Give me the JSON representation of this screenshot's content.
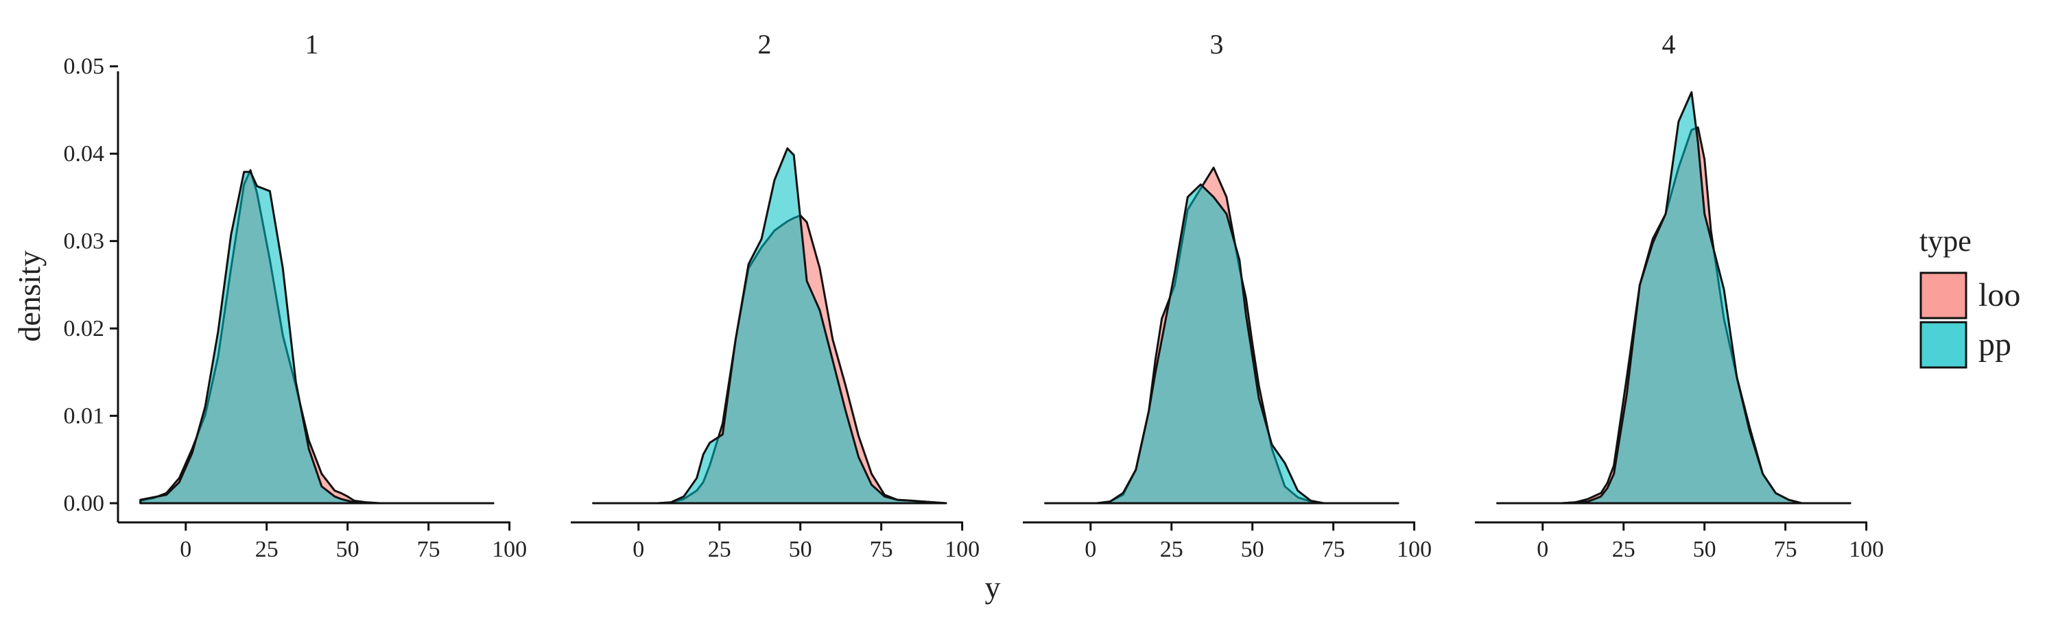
{
  "chart_data": {
    "type": "area",
    "title": "",
    "xlabel": "y",
    "ylabel": "density",
    "xlim": [
      -15,
      95
    ],
    "ylim": [
      0,
      0.051
    ],
    "xticks": [
      0,
      25,
      50,
      75,
      100
    ],
    "xtick_labels": [
      "0",
      "25",
      "50",
      "75",
      "100"
    ],
    "yticks": [
      0,
      0.01,
      0.02,
      0.03,
      0.04,
      0.05
    ],
    "ytick_labels": [
      "0.00",
      "0.01",
      "0.02",
      "0.03",
      "0.04",
      "0.05"
    ],
    "grid": false,
    "legend": {
      "title": "type",
      "position": "right",
      "entries": [
        {
          "name": "loo",
          "color": "#F8766D"
        },
        {
          "name": "pp",
          "color": "#00BFC4"
        }
      ]
    },
    "x": [
      -14,
      -10,
      -6,
      -2,
      2,
      6,
      10,
      14,
      18,
      20,
      22,
      26,
      30,
      34,
      38,
      42,
      46,
      48,
      50,
      52,
      56,
      60,
      64,
      68,
      72,
      76,
      80,
      84,
      88,
      95
    ],
    "panels": [
      {
        "label": "1",
        "series": [
          {
            "name": "loo",
            "values": [
              0.0003,
              0.0006,
              0.0012,
              0.003,
              0.0065,
              0.0105,
              0.0175,
              0.028,
              0.038,
              0.0397,
              0.037,
              0.029,
              0.02,
              0.014,
              0.0075,
              0.0035,
              0.0015,
              0.0012,
              0.0008,
              0.0003,
              0.0001,
              0.0,
              0.0,
              0.0,
              0.0,
              0.0,
              0.0,
              0.0,
              0.0,
              0.0
            ]
          },
          {
            "name": "pp",
            "values": [
              0.0004,
              0.0007,
              0.001,
              0.0025,
              0.006,
              0.0115,
              0.0205,
              0.032,
              0.0395,
              0.0395,
              0.0378,
              0.0372,
              0.028,
              0.0145,
              0.0065,
              0.002,
              0.0008,
              0.0005,
              0.0003,
              0.0001,
              0.0,
              0.0,
              0.0,
              0.0,
              0.0,
              0.0,
              0.0,
              0.0,
              0.0,
              0.0
            ]
          }
        ]
      },
      {
        "label": "2",
        "series": [
          {
            "name": "loo",
            "values": [
              0.0,
              0.0,
              0.0,
              0.0,
              0.0,
              0.0,
              0.0001,
              0.0005,
              0.0015,
              0.0025,
              0.0045,
              0.0095,
              0.0195,
              0.028,
              0.0305,
              0.0325,
              0.0336,
              0.034,
              0.0343,
              0.0335,
              0.028,
              0.0195,
              0.014,
              0.008,
              0.0035,
              0.001,
              0.0004,
              0.0003,
              0.0002,
              0.0
            ]
          },
          {
            "name": "pp",
            "values": [
              0.0,
              0.0,
              0.0,
              0.0,
              0.0,
              0.0,
              0.0001,
              0.0008,
              0.003,
              0.0058,
              0.0072,
              0.0082,
              0.0195,
              0.0285,
              0.0315,
              0.0385,
              0.0423,
              0.0415,
              0.034,
              0.0265,
              0.023,
              0.017,
              0.011,
              0.0055,
              0.0022,
              0.0008,
              0.0004,
              0.0003,
              0.0002,
              0.0
            ]
          }
        ]
      },
      {
        "label": "3",
        "series": [
          {
            "name": "loo",
            "values": [
              0.0,
              0.0,
              0.0,
              0.0,
              0.0,
              0.0002,
              0.001,
              0.004,
              0.011,
              0.017,
              0.022,
              0.026,
              0.035,
              0.0375,
              0.04,
              0.0365,
              0.028,
              0.0245,
              0.019,
              0.014,
              0.0065,
              0.002,
              0.0007,
              0.0002,
              0.0,
              0.0,
              0.0,
              0.0,
              0.0,
              0.0
            ]
          },
          {
            "name": "pp",
            "values": [
              0.0,
              0.0,
              0.0,
              0.0,
              0.0,
              0.0002,
              0.0012,
              0.004,
              0.011,
              0.0155,
              0.0195,
              0.0275,
              0.0365,
              0.038,
              0.0365,
              0.0345,
              0.029,
              0.0225,
              0.0175,
              0.0125,
              0.007,
              0.0048,
              0.0015,
              0.0003,
              0.0,
              0.0,
              0.0,
              0.0,
              0.0,
              0.0
            ]
          }
        ]
      },
      {
        "label": "4",
        "series": [
          {
            "name": "loo",
            "values": [
              0.0,
              0.0,
              0.0,
              0.0,
              0.0,
              0.0,
              0.0001,
              0.0005,
              0.0012,
              0.0024,
              0.0045,
              0.015,
              0.026,
              0.0315,
              0.0345,
              0.04,
              0.0445,
              0.0448,
              0.041,
              0.0325,
              0.022,
              0.015,
              0.009,
              0.0035,
              0.0012,
              0.0004,
              0.0,
              0.0,
              0.0,
              0.0
            ]
          },
          {
            "name": "pp",
            "values": [
              0.0,
              0.0,
              0.0,
              0.0,
              0.0,
              0.0,
              0.0001,
              0.0002,
              0.0008,
              0.0018,
              0.0035,
              0.013,
              0.026,
              0.031,
              0.0345,
              0.0455,
              0.049,
              0.043,
              0.0345,
              0.0315,
              0.0255,
              0.015,
              0.0085,
              0.0035,
              0.0012,
              0.0004,
              0.0,
              0.0,
              0.0,
              0.0
            ]
          }
        ]
      }
    ]
  }
}
